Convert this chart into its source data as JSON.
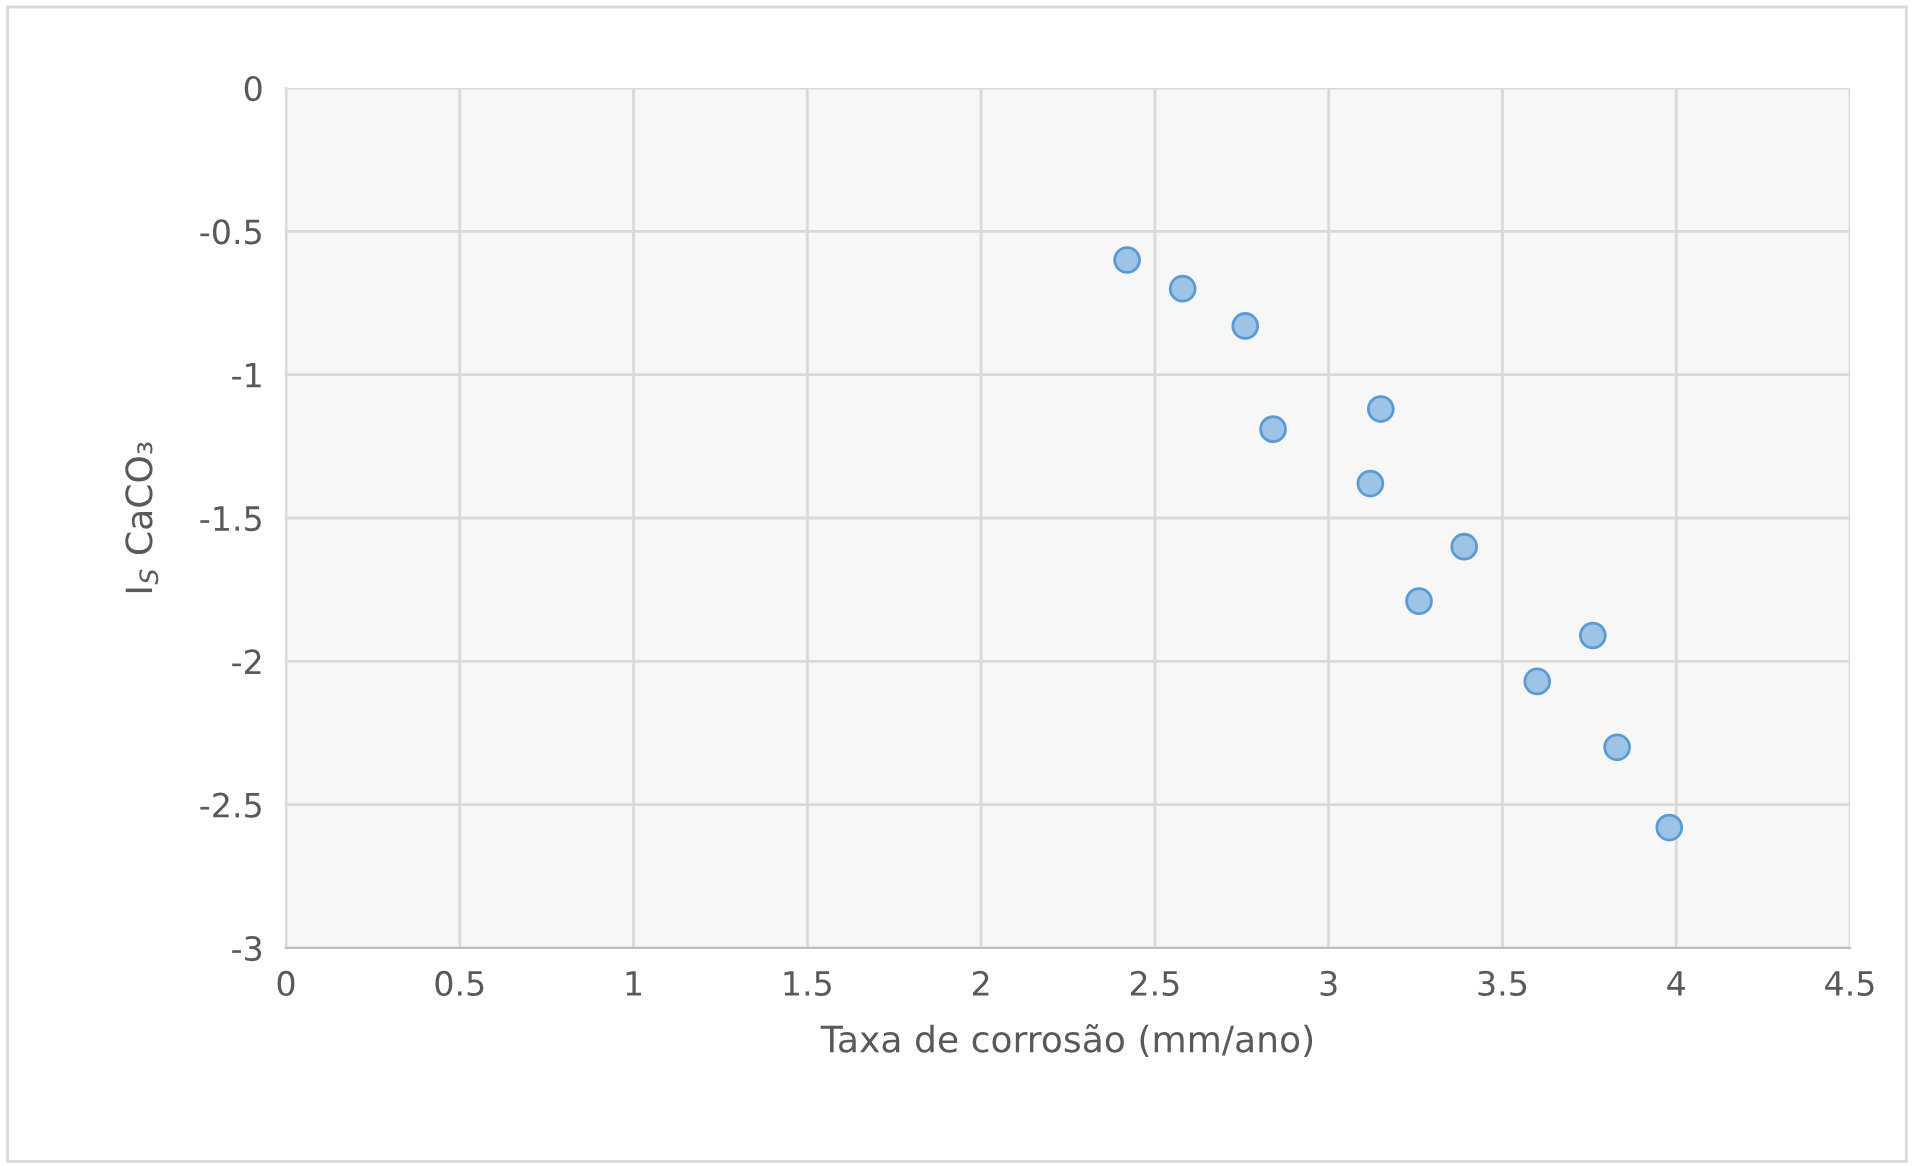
{
  "chart_data": {
    "type": "scatter",
    "xlabel": "Taxa de corrosão (mm/ano)",
    "ylabel": "I$_{S}$ CaCO₃",
    "x": [
      2.42,
      2.58,
      2.76,
      2.84,
      3.15,
      3.12,
      3.39,
      3.26,
      3.76,
      3.6,
      3.83,
      3.98
    ],
    "series": [
      {
        "color": "#9dc3e6",
        "values": [
          -0.6,
          -0.7,
          -0.83,
          -1.19,
          -1.12,
          -1.38,
          -1.6,
          -1.79,
          -1.91,
          -2.07,
          -2.3,
          -2.58
        ]
      }
    ],
    "xlim": [
      0,
      4.5
    ],
    "xticks": [
      0,
      0.5,
      1,
      1.5,
      2,
      2.5,
      3,
      3.5,
      4,
      4.5
    ],
    "ylim": [
      -3,
      0
    ],
    "yticks": [
      -3,
      -2.5,
      -2,
      -1.5,
      -1,
      -0.5,
      0
    ],
    "grid": true,
    "marker": "circle"
  }
}
